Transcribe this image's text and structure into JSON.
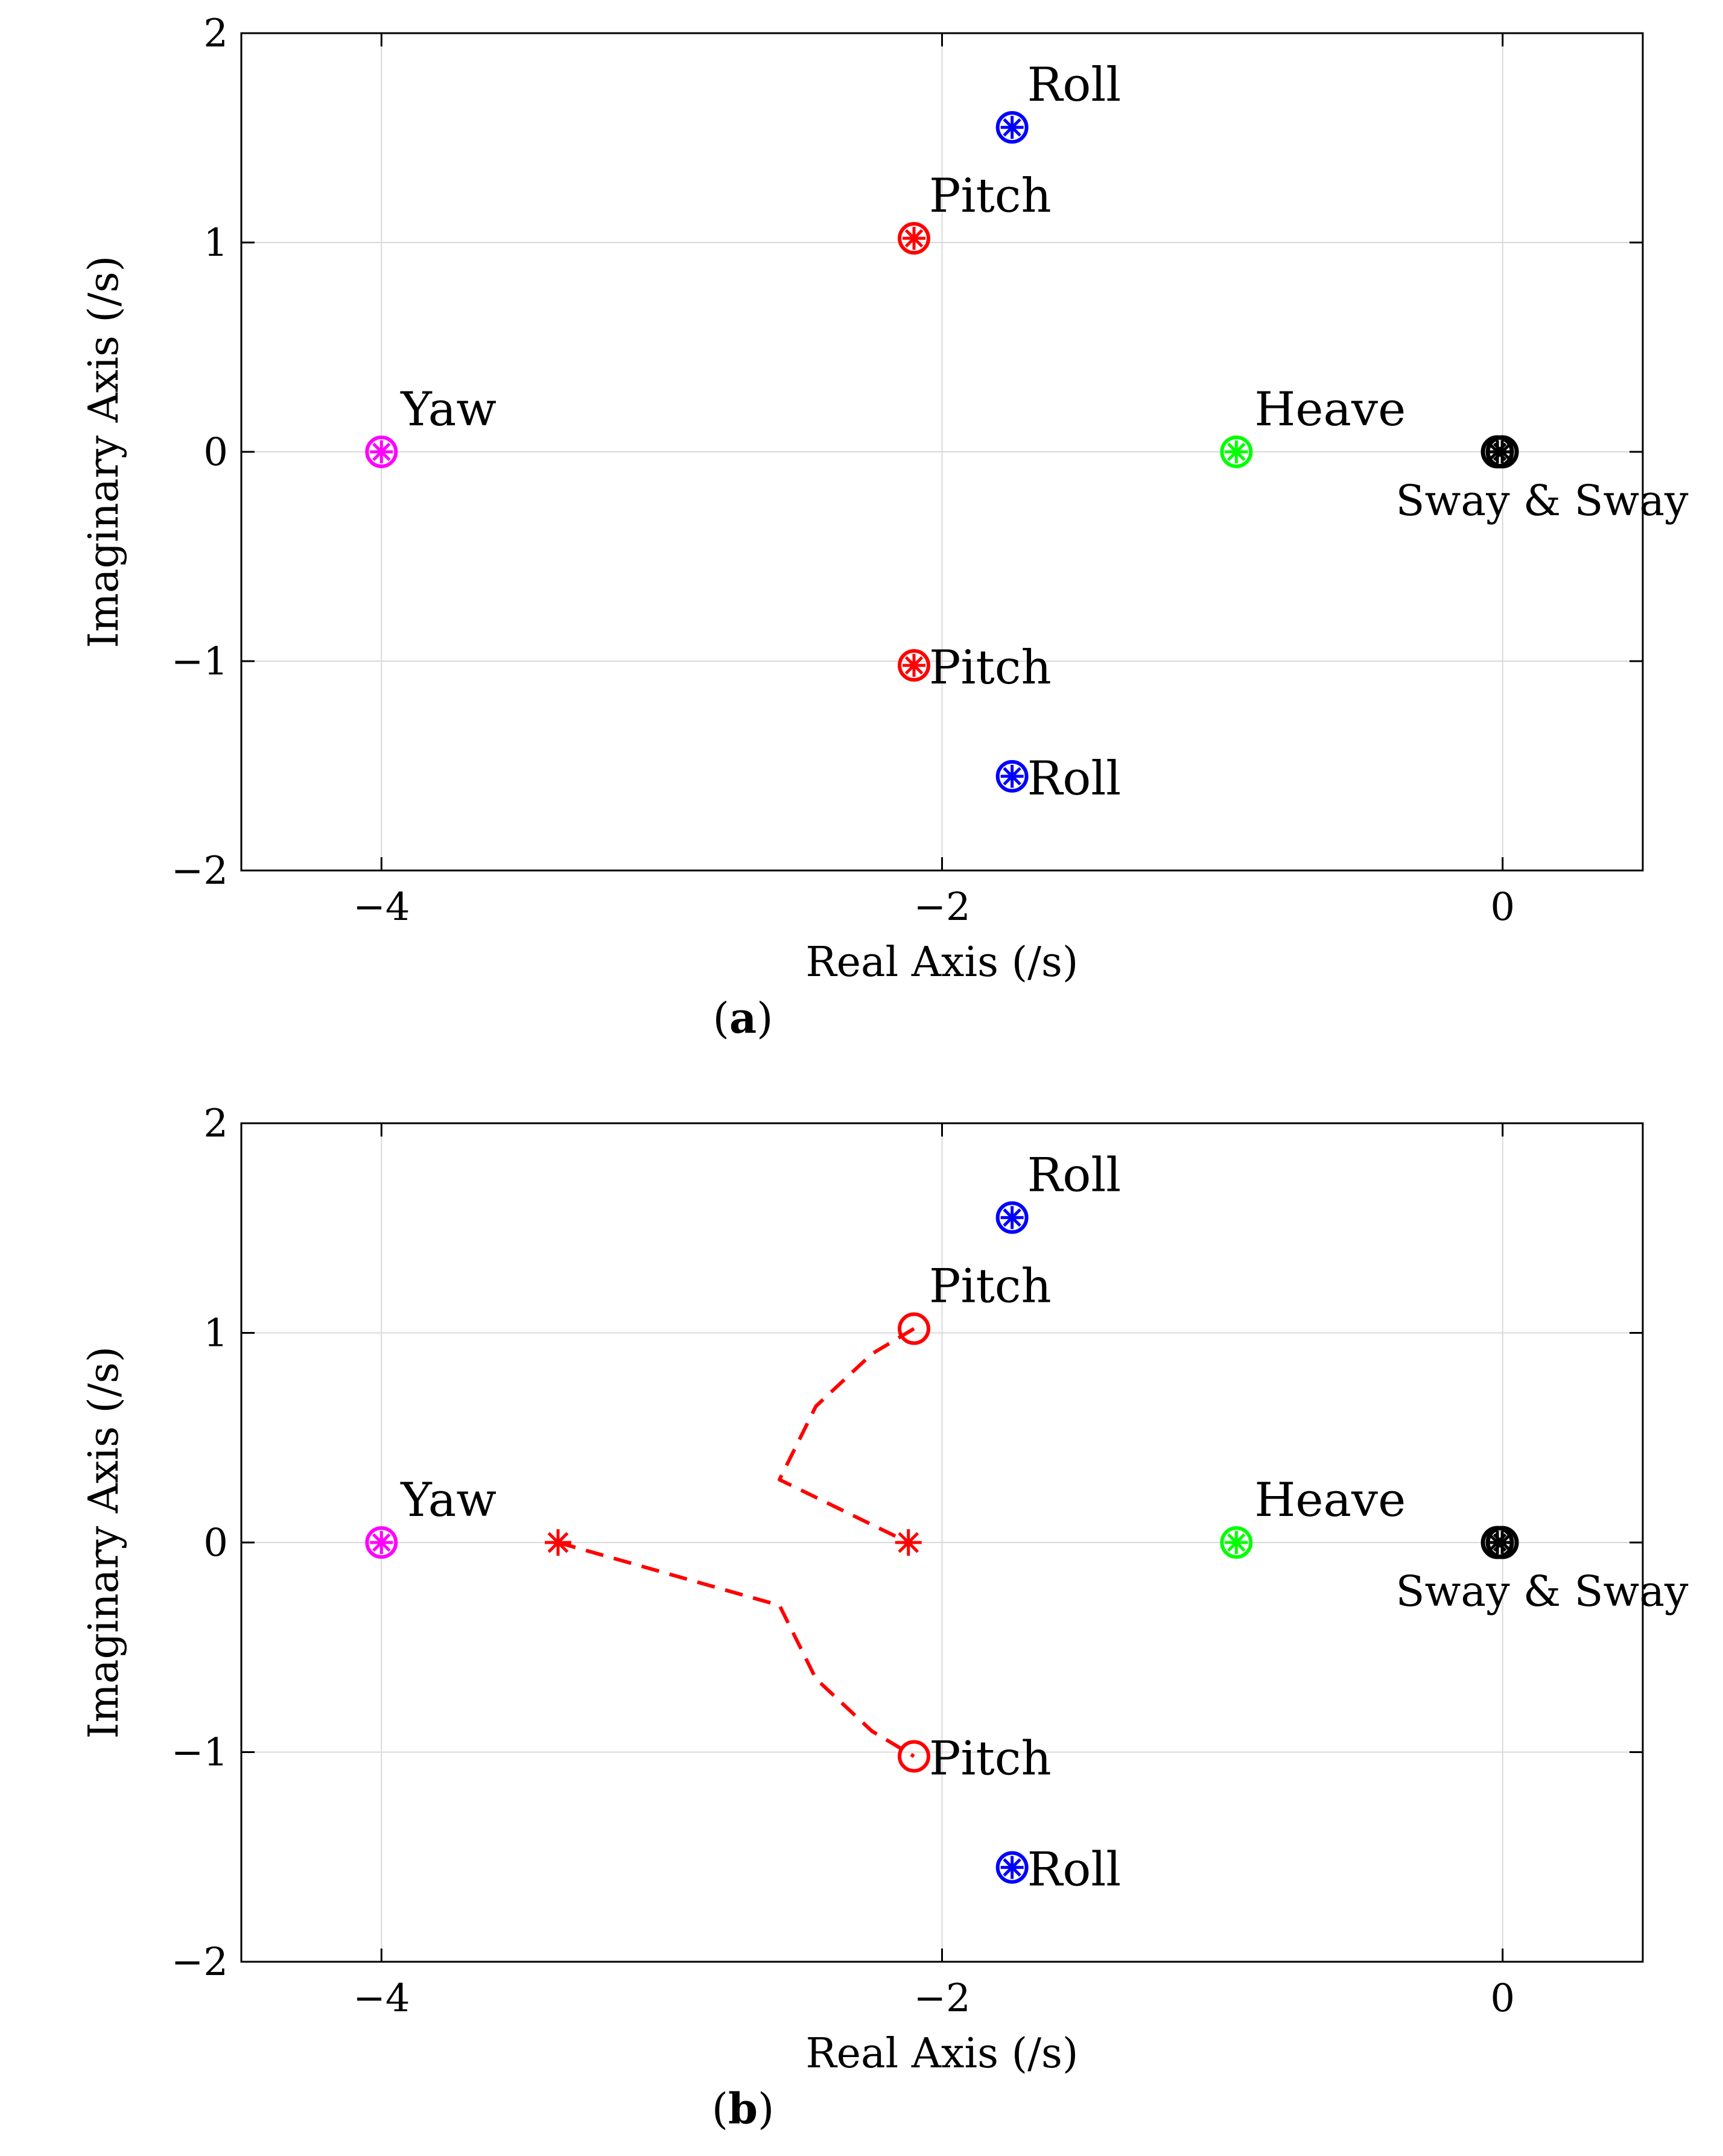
{
  "chart_data": [
    {
      "type": "scatter",
      "caption": "(a)",
      "caption_letter": "a",
      "xlabel": "Real Axis (/s)",
      "ylabel": "Imaginary Axis (/s)",
      "xlim": [
        -4.5,
        0.5
      ],
      "ylim": [
        -2,
        2
      ],
      "xticks": [
        -4,
        -2,
        0
      ],
      "xtick_labels": [
        "−4",
        "−2",
        "0"
      ],
      "yticks": [
        -2,
        -1,
        0,
        1,
        2
      ],
      "ytick_labels": [
        "−2",
        "−1",
        "0",
        "1",
        "2"
      ],
      "grid": true,
      "points": [
        {
          "label": "Roll",
          "x": -1.75,
          "y": 1.55,
          "color": "#0000ff",
          "marker": "circle-star"
        },
        {
          "label": "Roll",
          "x": -1.75,
          "y": -1.55,
          "color": "#0000ff",
          "marker": "circle-star"
        },
        {
          "label": "Pitch",
          "x": -2.1,
          "y": 1.02,
          "color": "#ff0000",
          "marker": "circle-star"
        },
        {
          "label": "Pitch",
          "x": -2.1,
          "y": -1.02,
          "color": "#ff0000",
          "marker": "circle-star"
        },
        {
          "label": "Yaw",
          "x": -4.0,
          "y": 0.0,
          "color": "#ff00ff",
          "marker": "circle-star"
        },
        {
          "label": "Heave",
          "x": -0.95,
          "y": 0.0,
          "color": "#00ff00",
          "marker": "circle-star"
        },
        {
          "label": "Sway & Sway",
          "x": -0.01,
          "y": 0.0,
          "color": "#000000",
          "marker": "circle-star-double"
        }
      ],
      "paths": []
    },
    {
      "type": "scatter",
      "caption": "(b)",
      "caption_letter": "b",
      "xlabel": "Real Axis (/s)",
      "ylabel": "Imaginary Axis (/s)",
      "xlim": [
        -4.5,
        0.5
      ],
      "ylim": [
        -2,
        2
      ],
      "xticks": [
        -4,
        -2,
        0
      ],
      "xtick_labels": [
        "−4",
        "−2",
        "0"
      ],
      "yticks": [
        -2,
        -1,
        0,
        1,
        2
      ],
      "ytick_labels": [
        "−2",
        "−1",
        "0",
        "1",
        "2"
      ],
      "grid": true,
      "points": [
        {
          "label": "Roll",
          "x": -1.75,
          "y": 1.55,
          "color": "#0000ff",
          "marker": "circle-star"
        },
        {
          "label": "Roll",
          "x": -1.75,
          "y": -1.55,
          "color": "#0000ff",
          "marker": "circle-star"
        },
        {
          "label": "Pitch",
          "x": -2.1,
          "y": 1.02,
          "color": "#ff0000",
          "marker": "circle"
        },
        {
          "label": "Pitch",
          "x": -2.1,
          "y": -1.02,
          "color": "#ff0000",
          "marker": "circle"
        },
        {
          "label": "",
          "x": -3.37,
          "y": 0.0,
          "color": "#ff0000",
          "marker": "star"
        },
        {
          "label": "",
          "x": -2.12,
          "y": 0.0,
          "color": "#ff0000",
          "marker": "star"
        },
        {
          "label": "Yaw",
          "x": -4.0,
          "y": 0.0,
          "color": "#ff00ff",
          "marker": "circle-star"
        },
        {
          "label": "Heave",
          "x": -0.95,
          "y": 0.0,
          "color": "#00ff00",
          "marker": "circle-star"
        },
        {
          "label": "Sway & Sway",
          "x": -0.01,
          "y": 0.0,
          "color": "#000000",
          "marker": "circle-star-double"
        }
      ],
      "paths": [
        {
          "name": "pitch-locus-upper",
          "color": "#ff0000",
          "dashed": true,
          "x": [
            -2.1,
            -2.25,
            -2.45,
            -2.58,
            -2.12
          ],
          "y": [
            1.02,
            0.9,
            0.65,
            0.3,
            0.0
          ]
        },
        {
          "name": "pitch-locus-lower",
          "color": "#ff0000",
          "dashed": true,
          "x": [
            -3.37,
            -2.58,
            -2.45,
            -2.25,
            -2.1
          ],
          "y": [
            0.0,
            -0.3,
            -0.65,
            -0.9,
            -1.02
          ]
        }
      ]
    }
  ]
}
